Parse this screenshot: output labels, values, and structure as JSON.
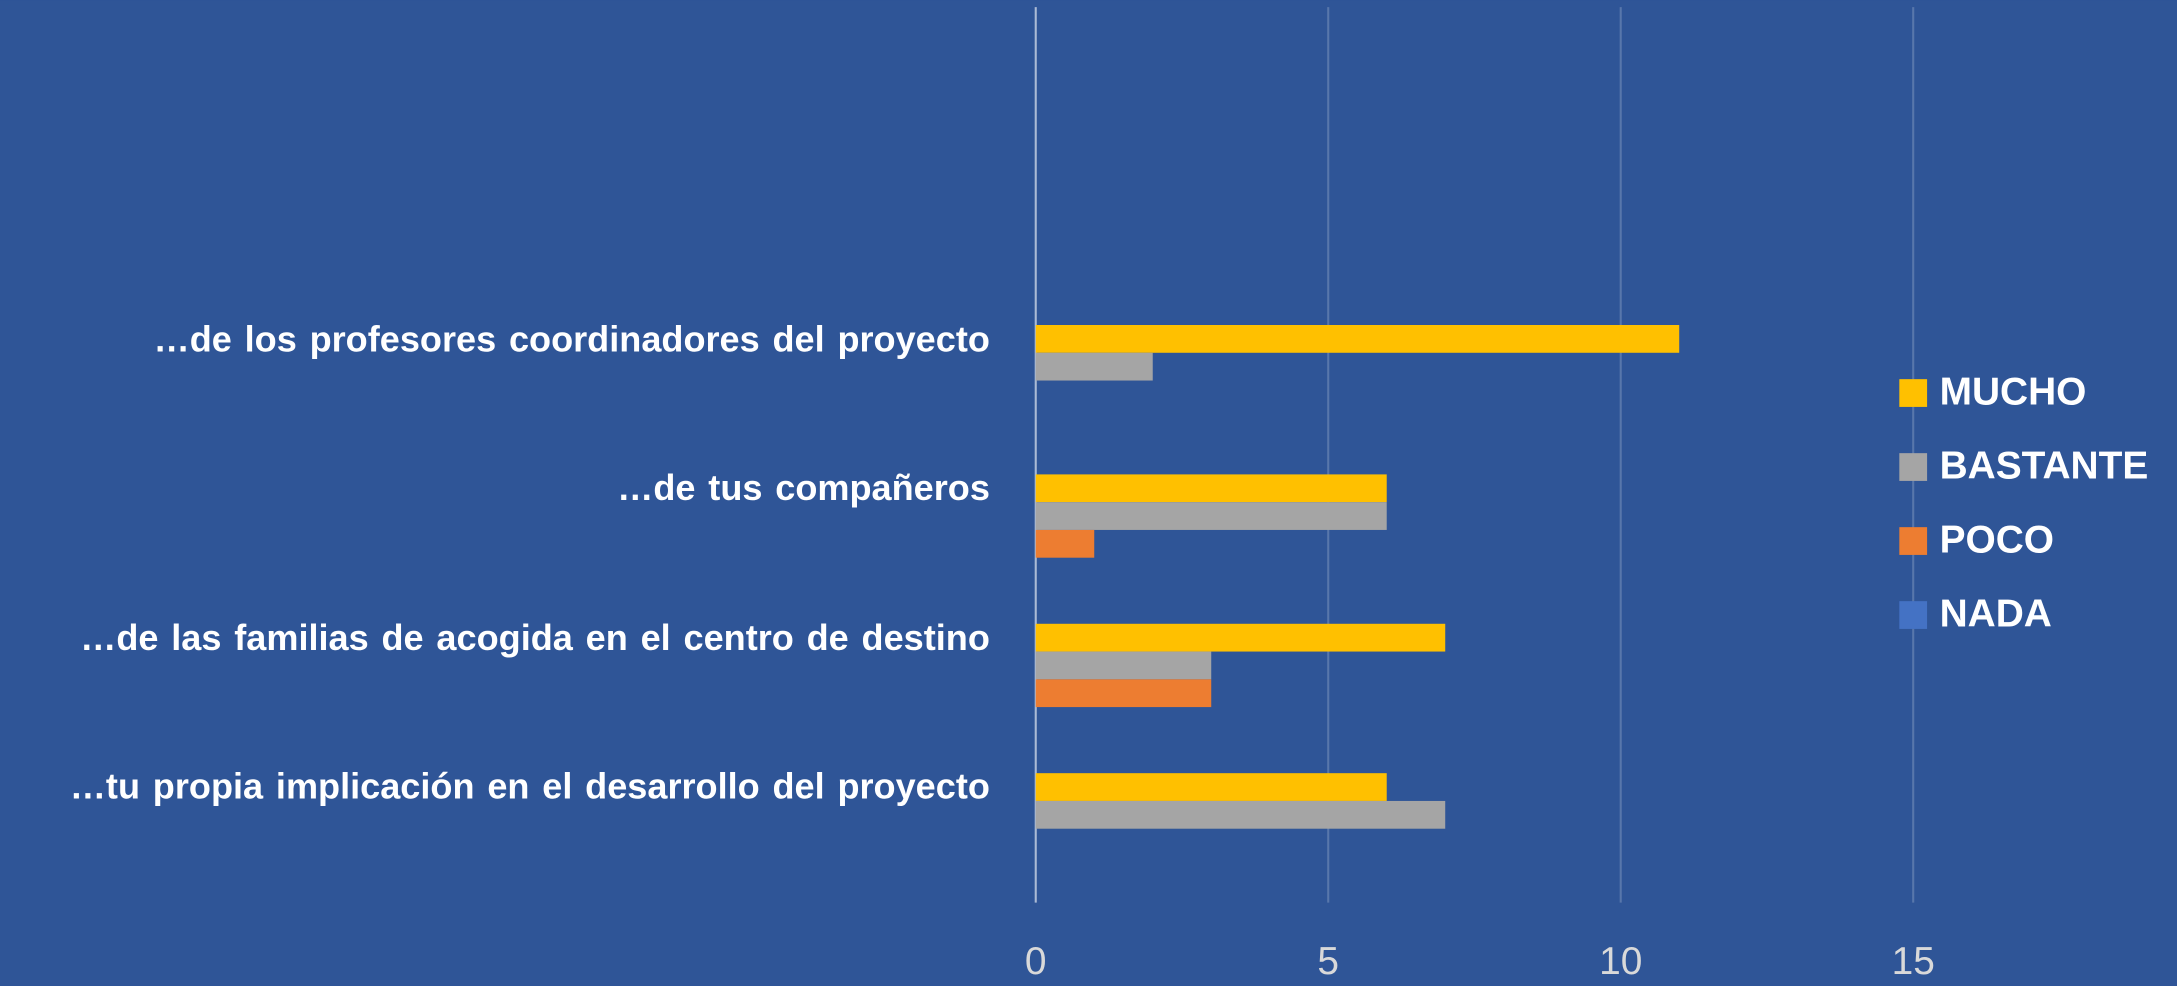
{
  "chart_data": {
    "type": "barh",
    "categories": [
      "…de los profesores coordinadores del proyecto",
      "…de tus compañeros",
      "…de las familias de acogida en el centro de destino",
      "…tu propia implicación en el desarrollo del proyecto"
    ],
    "series": [
      {
        "name": "MUCHO",
        "color": "#ffc000",
        "values": [
          11,
          6,
          7,
          6
        ]
      },
      {
        "name": "BASTANTE",
        "color": "#a5a5a5",
        "values": [
          2,
          6,
          3,
          7
        ]
      },
      {
        "name": "POCO",
        "color": "#ed7d31",
        "values": [
          0,
          1,
          3,
          0
        ]
      },
      {
        "name": "NADA",
        "color": "#4472c4",
        "values": [
          0,
          0,
          0,
          0
        ]
      }
    ],
    "xlim": [
      0,
      15
    ],
    "xticks": [
      0,
      5,
      10,
      15
    ],
    "grid": true,
    "legend": "right"
  }
}
